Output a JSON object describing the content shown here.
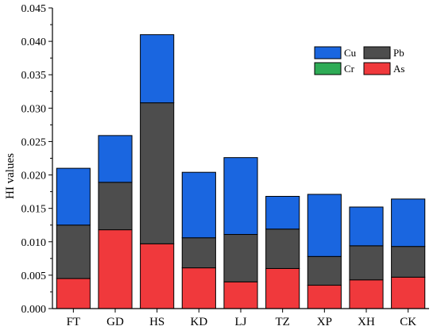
{
  "chart_data": {
    "type": "bar",
    "stacked": true,
    "title": "",
    "xlabel": "",
    "ylabel": "HI values",
    "ylim": [
      0,
      0.045
    ],
    "yticks": [
      "0.000",
      "0.005",
      "0.010",
      "0.015",
      "0.020",
      "0.025",
      "0.030",
      "0.035",
      "0.040",
      "0.045"
    ],
    "categories": [
      "FT",
      "GD",
      "HS",
      "KD",
      "LJ",
      "TZ",
      "XP",
      "XH",
      "CK"
    ],
    "series": [
      {
        "name": "As",
        "color": "#f0393c",
        "values": [
          0.0045,
          0.0118,
          0.0097,
          0.0061,
          0.004,
          0.006,
          0.0035,
          0.0043,
          0.0047
        ]
      },
      {
        "name": "Cr",
        "color": "#2eab56",
        "values": [
          0,
          0,
          0,
          0,
          0,
          0,
          0,
          0,
          0
        ]
      },
      {
        "name": "Pb",
        "color": "#4d4d4d",
        "values": [
          0.008,
          0.0071,
          0.0211,
          0.0045,
          0.0071,
          0.0059,
          0.0043,
          0.0051,
          0.0046
        ]
      },
      {
        "name": "Cu",
        "color": "#1a66e0",
        "values": [
          0.0085,
          0.007,
          0.0102,
          0.0098,
          0.0115,
          0.0049,
          0.0093,
          0.0058,
          0.0071
        ]
      }
    ],
    "legend": {
      "placement": "top-right",
      "order": [
        "Cu",
        "Pb",
        "Cr",
        "As"
      ]
    },
    "grid": false
  }
}
